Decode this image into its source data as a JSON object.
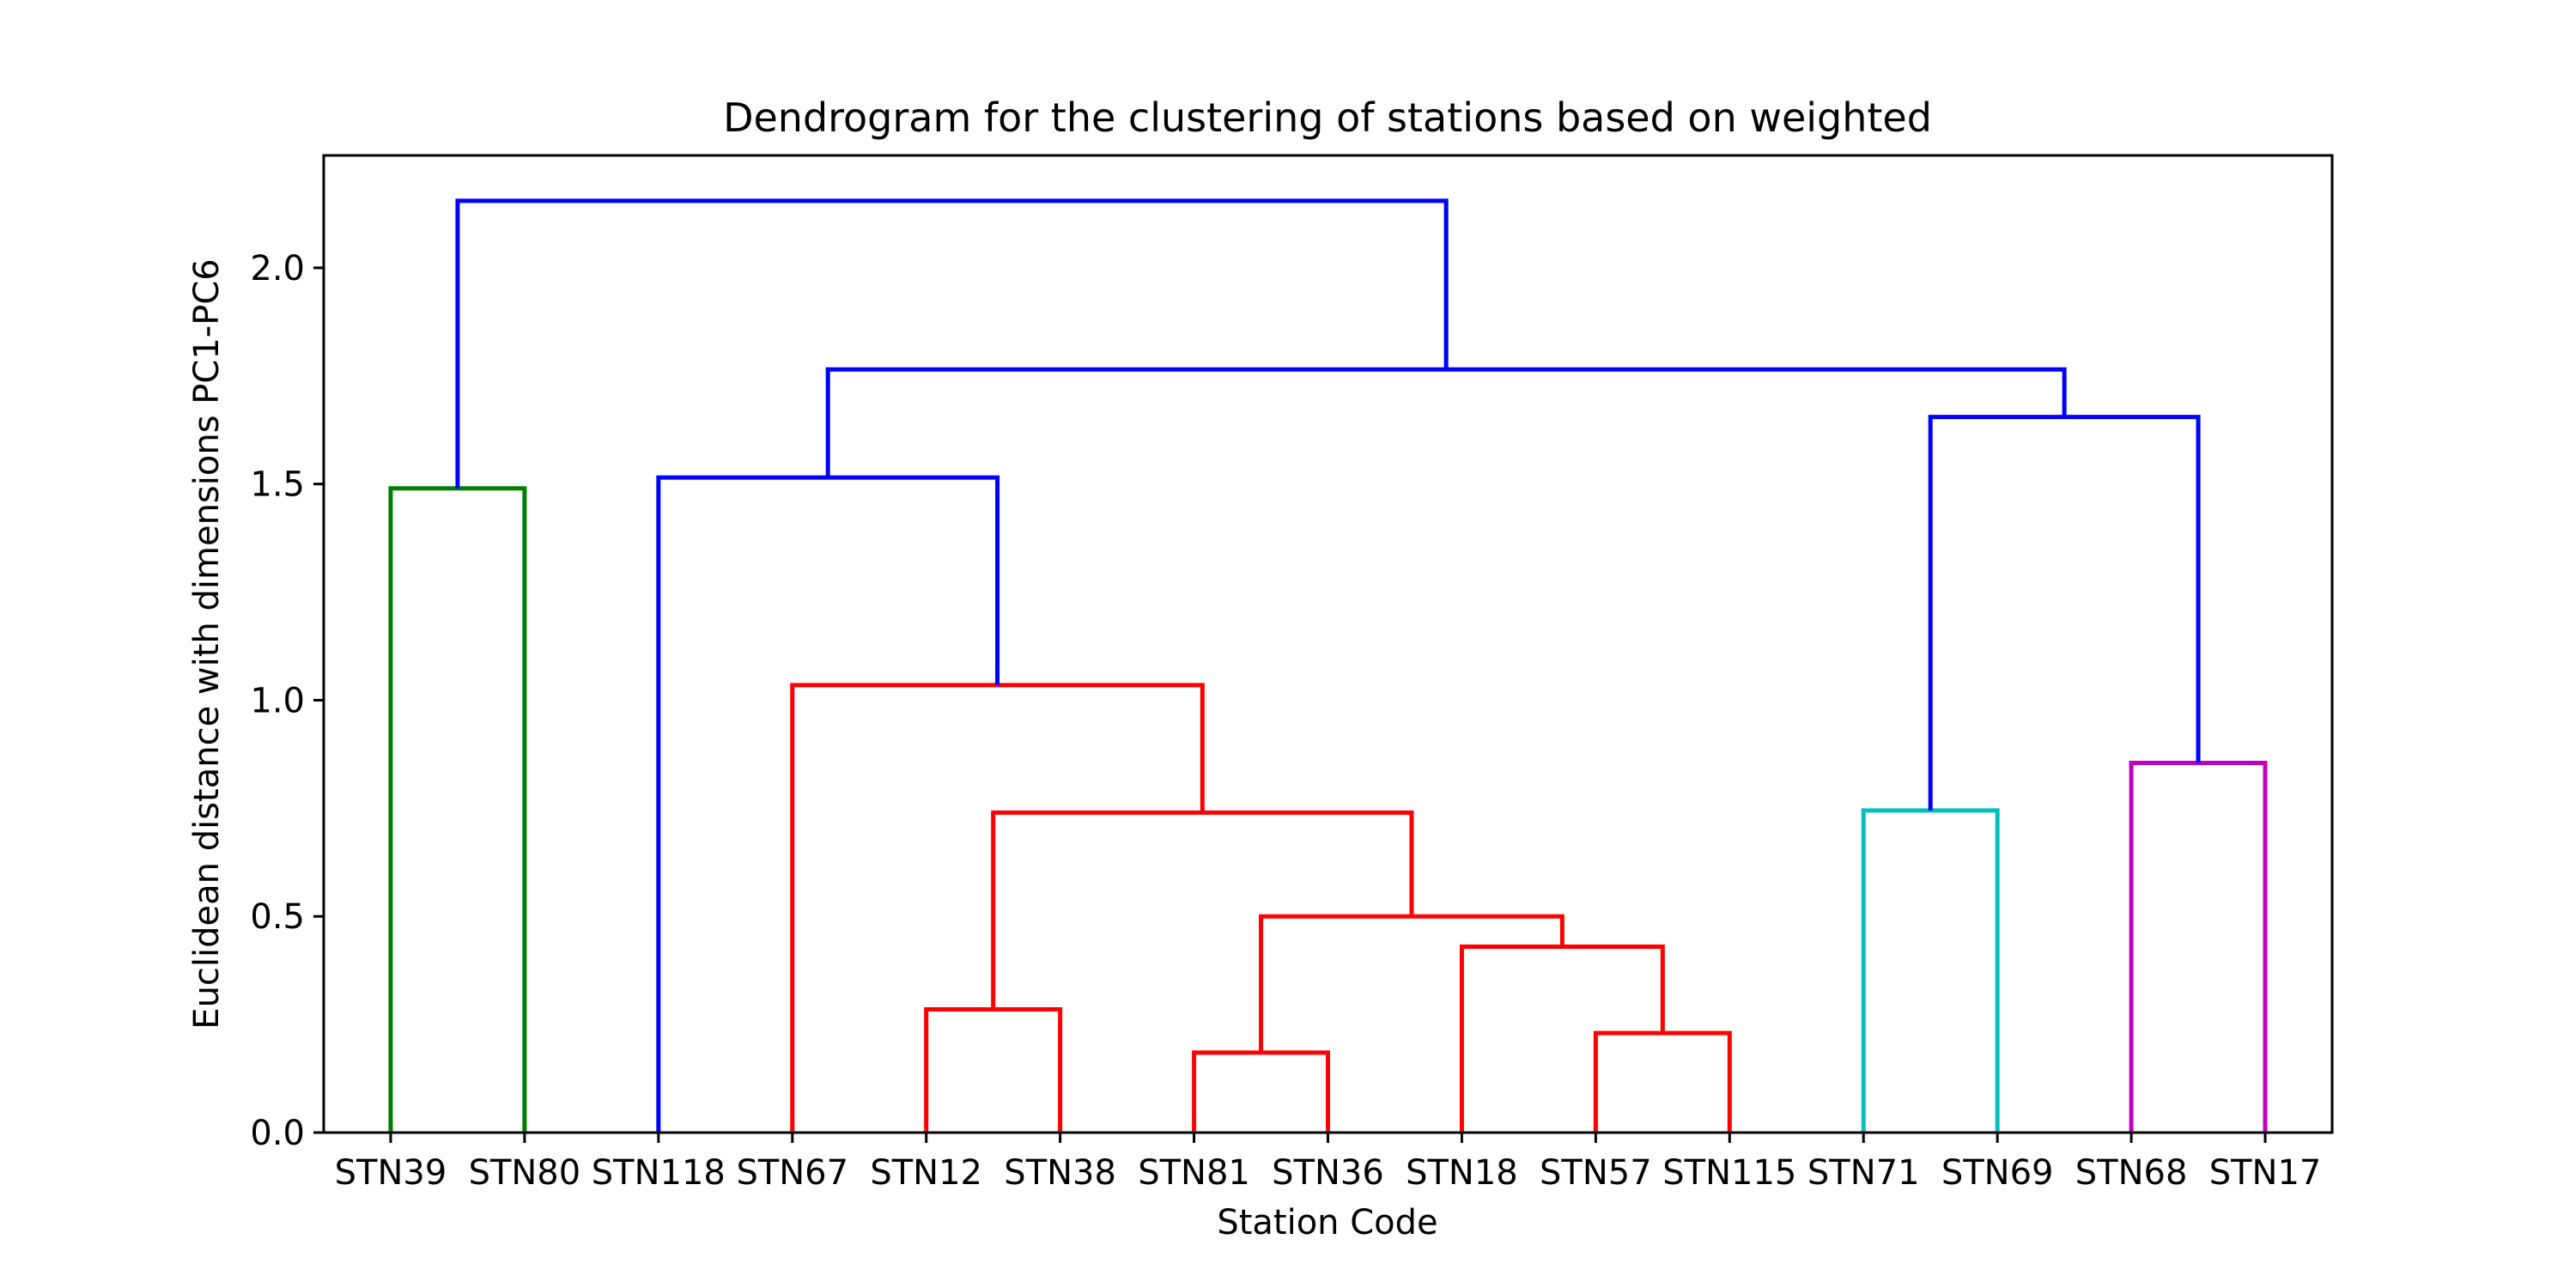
{
  "chart_data": {
    "type": "dendrogram",
    "title": "Dendrogram for the clustering of stations based on weighted",
    "xlabel": "Station Code",
    "ylabel": "Euclidean distance with dimensions PC1-PC6",
    "ylim": [
      0,
      2.26
    ],
    "y_ticks": [
      "0.0",
      "0.5",
      "1.0",
      "1.5",
      "2.0"
    ],
    "y_tick_values": [
      0.0,
      0.5,
      1.0,
      1.5,
      2.0
    ],
    "leaves": [
      "STN39",
      "STN80",
      "STN118",
      "STN67",
      "STN12",
      "STN38",
      "STN81",
      "STN36",
      "STN18",
      "STN57",
      "STN115",
      "STN71",
      "STN69",
      "STN68",
      "STN17"
    ],
    "merges": [
      {
        "left": "STN39",
        "right": "STN80",
        "height": 1.49,
        "color": "#008000"
      },
      {
        "left": "STN12",
        "right": "STN38",
        "height": 0.285,
        "color": "#ff0000"
      },
      {
        "left": "STN81",
        "right": "STN36",
        "height": 0.185,
        "color": "#ff0000"
      },
      {
        "left": "STN57",
        "right": "STN115",
        "height": 0.23,
        "color": "#ff0000"
      },
      {
        "left": "STN18",
        "right": "STN57+STN115",
        "height": 0.43,
        "color": "#ff0000"
      },
      {
        "left": "STN81+STN36",
        "right": "STN18+STN57+STN115",
        "height": 0.5,
        "color": "#ff0000"
      },
      {
        "left": "STN12+STN38",
        "right": "STN81..STN115",
        "height": 0.74,
        "color": "#ff0000"
      },
      {
        "left": "STN67",
        "right": "STN12..STN115",
        "height": 1.035,
        "color": "#ff0000"
      },
      {
        "left": "STN118",
        "right": "STN67..STN115",
        "height": 1.515,
        "color": "#0000ff"
      },
      {
        "left": "STN71",
        "right": "STN69",
        "height": 0.745,
        "color": "#00bfbf"
      },
      {
        "left": "STN68",
        "right": "STN17",
        "height": 0.855,
        "color": "#bf00bf"
      },
      {
        "left": "STN71+STN69",
        "right": "STN68+STN17",
        "height": 1.655,
        "color": "#0000ff"
      },
      {
        "left": "STN118..STN115",
        "right": "STN71..STN17",
        "height": 1.765,
        "color": "#0000ff"
      },
      {
        "left": "STN39+STN80",
        "right": "STN118..STN17",
        "height": 2.155,
        "color": "#0000ff"
      }
    ],
    "grid": false,
    "legend": "none"
  }
}
